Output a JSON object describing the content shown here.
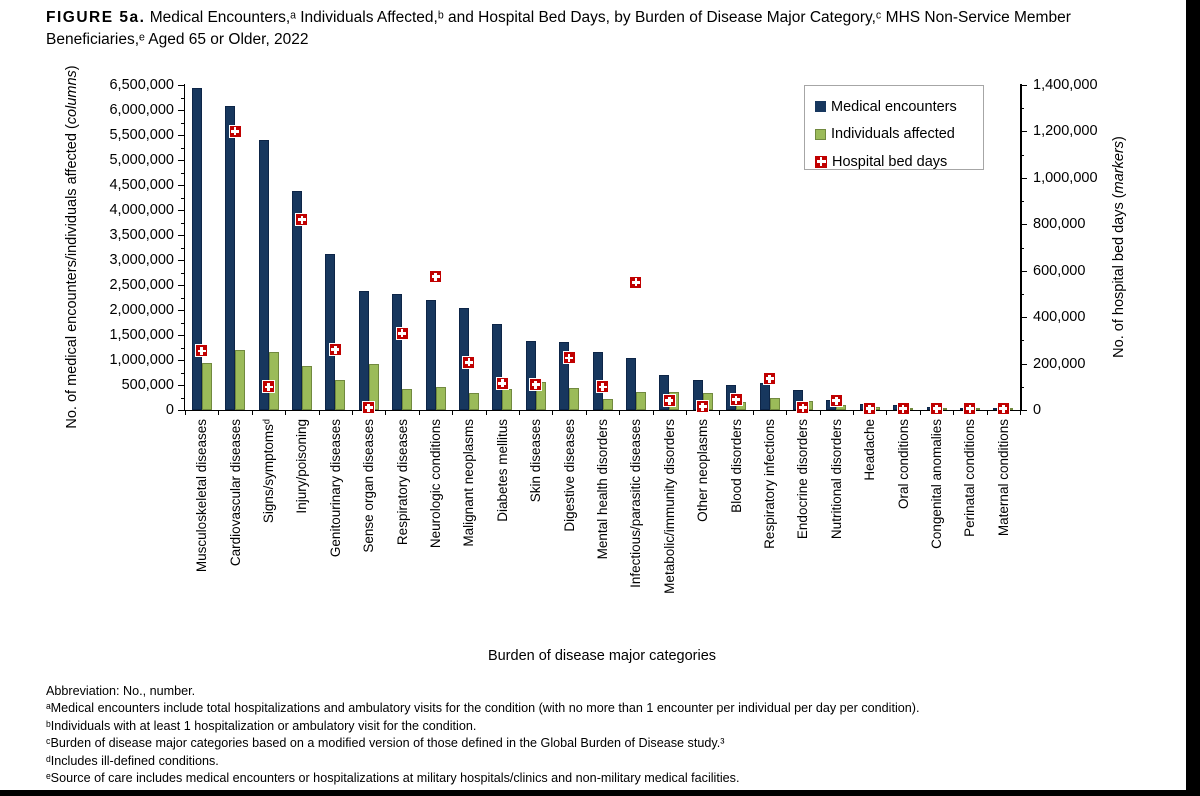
{
  "figure": {
    "label": "FIGURE 5a.",
    "title": "Medical Encounters,ᵃ Individuals Affected,ᵇ and Hospital Bed Days, by Burden of Disease Major Category,ᶜ MHS Non-Service Member Beneficiaries,ᵉ Aged 65 or Older, 2022"
  },
  "axes": {
    "left_title": {
      "prefix": "No. of medical encounters/individuals affected (",
      "italic": "columns",
      "suffix": ")"
    },
    "right_title": {
      "prefix": "No. of hospital bed days (",
      "italic": "markers",
      "suffix": ")"
    },
    "x_title": "Burden of disease major categories"
  },
  "footnotes": [
    "Abbreviation: No., number.",
    "ᵃMedical encounters include total hospitalizations and ambulatory visits for the condition (with no more than 1 encounter per individual per day per condition).",
    "ᵇIndividuals with at least 1 hospitalization or ambulatory visit for the condition.",
    "ᶜBurden of disease major categories based on a modified version of those defined in the Global Burden of Disease study.³",
    "ᵈIncludes ill-defined conditions.",
    "ᵉSource of care includes medical encounters or hospitalizations at military hospitals/clinics and non-military medical facilities."
  ],
  "colors": {
    "medical_encounters": "#17375E",
    "individuals_affected": "#9BBB59",
    "individuals_affected_border": "#71893F",
    "hospital_bed_days": "#C00000",
    "legend_border": "#A6A6A6"
  },
  "chart_data": {
    "type": "bar",
    "subtype": "grouped columns with point markers on secondary axis",
    "grid": false,
    "legend_position": "inside top-right",
    "categories": [
      "Musculoskeletal diseases",
      "Cardiovascular diseases",
      "Signs/symptomsᵈ",
      "Injury/poisoning",
      "Genitourinary diseases",
      "Sense organ diseases",
      "Respiratory diseases",
      "Neurologic conditions",
      "Malignant neoplasms",
      "Diabetes mellitus",
      "Skin diseases",
      "Digestive diseases",
      "Mental health disorders",
      "Infectious/parasitic diseases",
      "Metabolic/immunity disorders",
      "Other neoplasms",
      "Blood disorders",
      "Respiratory infections",
      "Endocrine disorders",
      "Nutritional disorders",
      "Headache",
      "Oral conditions",
      "Congenital anomalies",
      "Perinatal conditions",
      "Maternal conditions"
    ],
    "series": [
      {
        "name": "Medical encounters",
        "type": "column",
        "axis": "left",
        "color": "#17375E",
        "values": [
          6450000,
          6080000,
          5400000,
          4380000,
          3120000,
          2390000,
          2330000,
          2200000,
          2050000,
          1730000,
          1390000,
          1370000,
          1170000,
          1050000,
          700000,
          610000,
          510000,
          540000,
          400000,
          200000,
          120000,
          100000,
          65000,
          40000,
          25000
        ]
      },
      {
        "name": "Individuals affected",
        "type": "column",
        "axis": "left",
        "color": "#9BBB59",
        "values": [
          950000,
          1200000,
          1170000,
          875000,
          600000,
          915000,
          420000,
          460000,
          340000,
          420000,
          570000,
          440000,
          215000,
          370000,
          360000,
          345000,
          160000,
          250000,
          185000,
          95000,
          55000,
          35000,
          25000,
          15000,
          10000
        ]
      },
      {
        "name": "Hospital bed days",
        "type": "marker",
        "axis": "right",
        "color": "#C00000",
        "values": [
          255000,
          1200000,
          100000,
          820000,
          260000,
          10000,
          330000,
          575000,
          205000,
          115000,
          110000,
          225000,
          100000,
          550000,
          40000,
          15000,
          45000,
          135000,
          10000,
          40000,
          5000,
          5000,
          5000,
          5000,
          5000
        ]
      }
    ],
    "left_axis": {
      "label": "No. of medical encounters/individuals affected (columns)",
      "min": 0,
      "max": 6500000,
      "major_step": 500000,
      "minor_step": 250000
    },
    "right_axis": {
      "label": "No. of hospital bed days (markers)",
      "min": 0,
      "max": 1400000,
      "major_step": 200000,
      "minor_step": 100000
    },
    "xlabel": "Burden of disease major categories"
  }
}
